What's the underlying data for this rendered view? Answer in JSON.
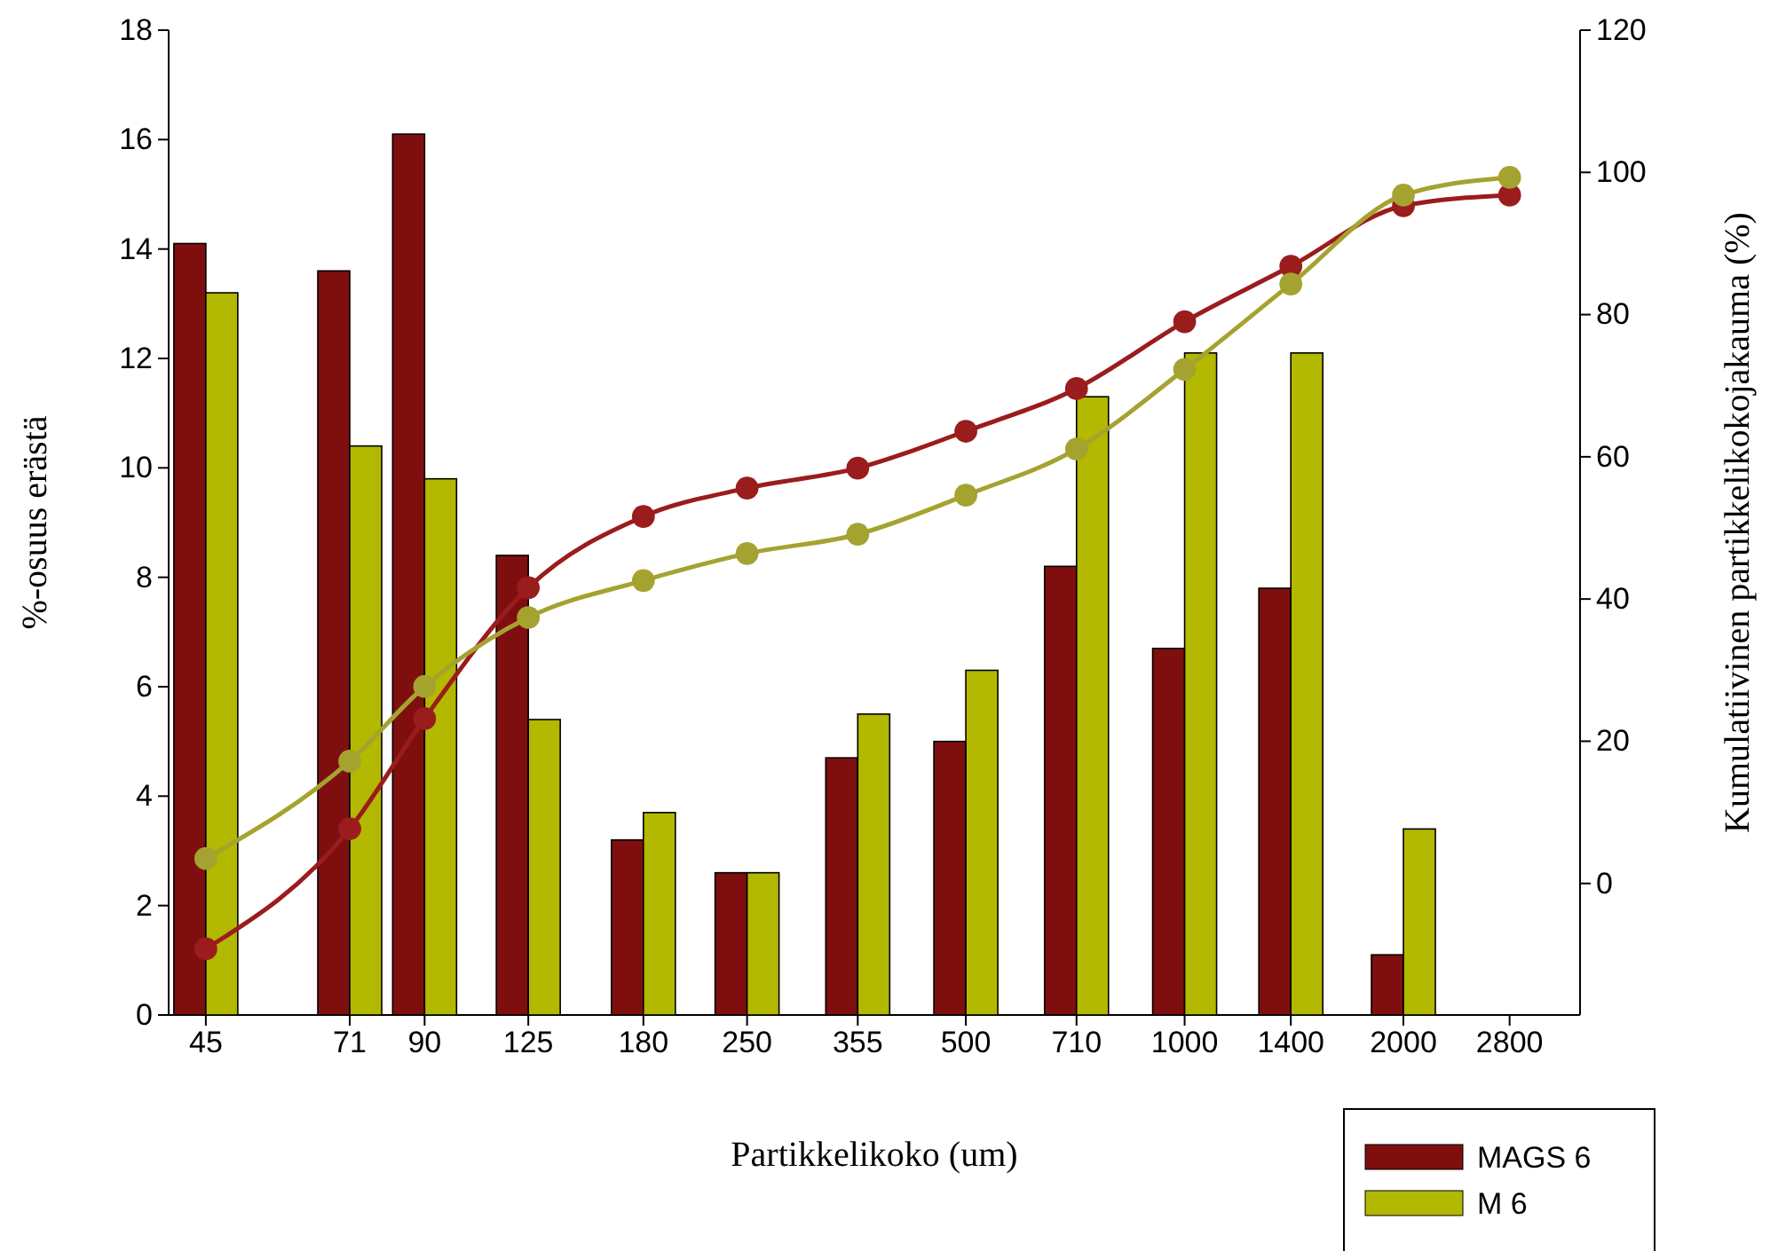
{
  "chart_data": {
    "type": "bar",
    "xlabel": "Partikkelikoko (um)",
    "ylabel": "%-osuus erästä",
    "y2label": "Kumulatiivinen partikkelikokojakauma (%)",
    "x": [
      45,
      71,
      90,
      125,
      180,
      250,
      355,
      500,
      710,
      1000,
      1400,
      2000,
      2800
    ],
    "log": "x",
    "xlim": [
      40,
      3500
    ],
    "xticks": [
      45,
      71,
      90,
      125,
      180,
      250,
      355,
      500,
      710,
      1000,
      1400,
      2000,
      2800
    ],
    "ylim": [
      0,
      18
    ],
    "yticks": [
      0,
      2,
      4,
      6,
      8,
      10,
      12,
      14,
      16,
      18
    ],
    "y2lim": [
      -18.5,
      120
    ],
    "y2ticks": [
      0,
      20,
      40,
      60,
      80,
      100,
      120
    ],
    "legend": "bottom right",
    "grid": false,
    "series": [
      {
        "name": "MAGS 6",
        "color": "#7f0f0f",
        "values": [
          14.1,
          13.6,
          16.1,
          8.4,
          3.2,
          2.6,
          4.7,
          5.0,
          8.2,
          6.7,
          7.8,
          1.1,
          null
        ]
      },
      {
        "name": "M 6",
        "color": "#b3b800",
        "values": [
          13.2,
          10.4,
          9.8,
          5.4,
          3.7,
          2.6,
          5.5,
          6.3,
          11.3,
          12.1,
          12.1,
          3.4,
          null
        ]
      },
      {
        "type": "line",
        "axis": "y2",
        "marker": "circle",
        "color": "#9b1c1c",
        "values": [
          -9.2,
          7.7,
          23.2,
          41.6,
          51.6,
          55.6,
          58.4,
          63.6,
          69.6,
          79.0,
          86.8,
          95.3,
          96.8
        ]
      },
      {
        "type": "line",
        "axis": "y2",
        "marker": "circle",
        "color": "#a5a330",
        "values": [
          3.5,
          17.2,
          27.7,
          37.4,
          42.6,
          46.4,
          49.1,
          54.6,
          61.1,
          72.3,
          84.3,
          96.8,
          99.3
        ]
      }
    ]
  }
}
